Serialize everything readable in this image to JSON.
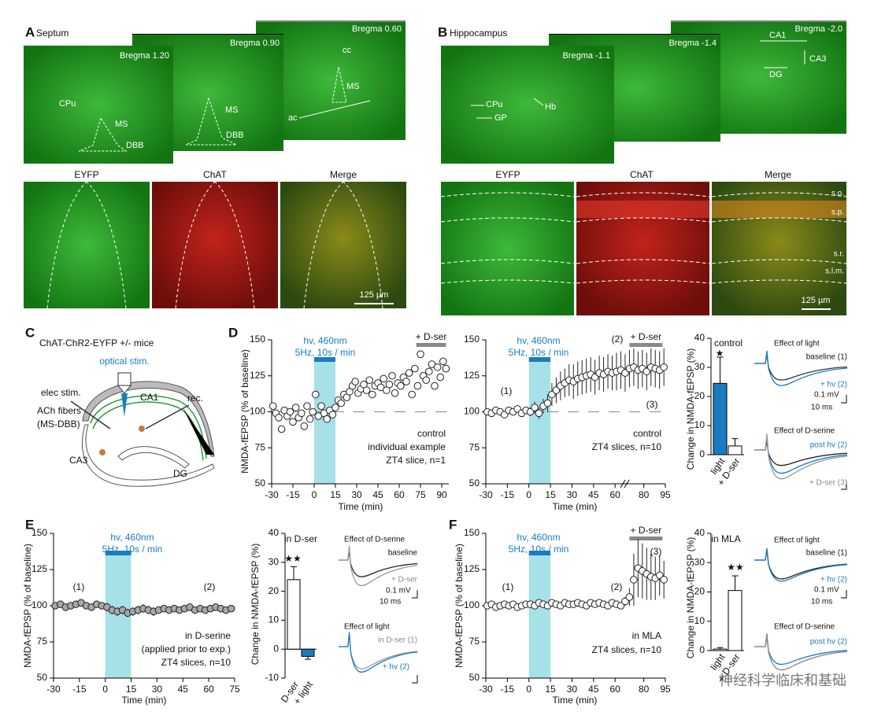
{
  "panel_a": {
    "letter": "A",
    "title": "Septum",
    "sections": [
      "Bregma 1.20",
      "Bregma 0.90",
      "Bregma 0.60"
    ],
    "region_labels": [
      "CPu",
      "MS",
      "DBB",
      "MS",
      "DBB",
      "cc",
      "MS",
      "ac"
    ],
    "channels": [
      "EYFP",
      "ChAT",
      "Merge"
    ],
    "scale_bar": "125 µm"
  },
  "panel_b": {
    "letter": "B",
    "title": "Hippocampus",
    "sections": [
      "Bregma -1.1",
      "Bregma -1.4",
      "Bregma -2.0"
    ],
    "region_labels": [
      "CPu",
      "GP",
      "Hb",
      "CA1",
      "CA3",
      "DG"
    ],
    "channels": [
      "EYFP",
      "ChAT",
      "Merge"
    ],
    "layers": [
      "s.o.",
      "s.p.",
      "s.r.",
      "s.l.m."
    ],
    "scale_bar": "125 µm"
  },
  "panel_c": {
    "letter": "C",
    "title": "ChAT-ChR2-EYFP +/-  mice",
    "labels": [
      "optical stim.",
      "CA1",
      "elec stim.",
      "rec.",
      "ACh fibers",
      "(MS-DBB)",
      "CA3",
      "DG"
    ]
  },
  "panel_d": {
    "letter": "D",
    "y_axis_label": "NMDA-fEPSP (% of baseline)",
    "x_axis_label": "Time (min)",
    "stim_label": [
      "hv, 460nm",
      "5Hz, 10s / min"
    ],
    "charts": [
      {
        "type": "scatter",
        "x": [
          -29,
          -27,
          -25,
          -23,
          -21,
          -19,
          -17,
          -15,
          -13,
          -11,
          -9,
          -7,
          -5,
          -3,
          -1,
          1,
          3,
          5,
          7,
          9,
          11,
          13,
          15,
          17,
          19,
          21,
          23,
          25,
          27,
          29,
          31,
          33,
          35,
          37,
          39,
          41,
          43,
          45,
          47,
          49,
          51,
          53,
          55,
          57,
          59,
          61,
          63,
          65,
          67,
          69,
          71,
          73,
          75,
          77,
          79,
          81,
          83,
          85,
          87,
          89,
          91,
          93
        ],
        "values": [
          104,
          99,
          96,
          88,
          101,
          97,
          100,
          93,
          103,
          96,
          99,
          90,
          104,
          95,
          100,
          112,
          97,
          104,
          99,
          95,
          101,
          98,
          103,
          108,
          106,
          112,
          110,
          114,
          118,
          121,
          113,
          116,
          119,
          115,
          122,
          112,
          118,
          120,
          117,
          123,
          115,
          119,
          125,
          113,
          120,
          118,
          124,
          121,
          127,
          112,
          130,
          118,
          140,
          125,
          122,
          128,
          133,
          118,
          131,
          124,
          135,
          130
        ],
        "xlim": [
          -30,
          95
        ],
        "xticks": [
          -30,
          -15,
          0,
          15,
          30,
          45,
          60,
          75,
          90
        ],
        "ylim": [
          50,
          150
        ],
        "yticks": [
          50,
          75,
          100,
          125,
          150
        ],
        "stim_period": [
          0,
          15
        ],
        "stim_color": "#1a7cc0",
        "shade_color": "#a6e1e8",
        "dser_label": "+ D-ser",
        "dser_period": [
          72,
          93
        ],
        "reference_line": 100,
        "marker_fill": "#ffffff",
        "annotations": [
          "control",
          "individual example",
          "ZT4 slice, n=1"
        ]
      },
      {
        "type": "scatter",
        "x": [
          -29,
          -26,
          -23,
          -20,
          -17,
          -14,
          -11,
          -8,
          -5,
          -2,
          1,
          4,
          7,
          10,
          13,
          16,
          19,
          22,
          25,
          28,
          31,
          34,
          37,
          40,
          43,
          46,
          49,
          52,
          55,
          58,
          61,
          64,
          67,
          70,
          73,
          76,
          79,
          82,
          85,
          88,
          91,
          94
        ],
        "values": [
          100,
          99,
          101,
          100,
          98,
          101,
          100,
          102,
          99,
          101,
          100,
          103,
          99,
          104,
          106,
          112,
          115,
          118,
          120,
          122,
          121,
          123,
          124,
          125,
          126,
          124,
          127,
          126,
          128,
          127,
          128,
          129,
          127,
          130,
          131,
          129,
          130,
          128,
          131,
          130,
          129,
          131
        ],
        "errors": [
          2,
          2,
          2,
          2,
          2,
          2,
          2,
          2,
          2,
          2,
          3,
          4,
          4,
          5,
          6,
          8,
          9,
          10,
          10,
          11,
          12,
          12,
          12,
          12,
          12,
          12,
          12,
          12,
          12,
          12,
          13,
          13,
          13,
          13,
          13,
          13,
          13,
          13,
          13,
          13,
          13,
          13
        ],
        "xlim": [
          -30,
          95
        ],
        "xticks": [
          -30,
          -15,
          0,
          15,
          30,
          45,
          60,
          80,
          95
        ],
        "ylim": [
          50,
          150
        ],
        "yticks": [
          50,
          75,
          100,
          125,
          150
        ],
        "stim_period": [
          0,
          15
        ],
        "stim_color": "#1a7cc0",
        "shade_color": "#a6e1e8",
        "dser_label": "+ D-ser",
        "dser_period": [
          70,
          93
        ],
        "reference_line": 100,
        "marker_fill": "#ffffff",
        "annotations": [
          "(1)",
          "(2)",
          "(3)",
          "control",
          "ZT4 slices, n=10"
        ]
      }
    ],
    "bar_chart": {
      "type": "bar",
      "categories": [
        "light",
        "+ D-ser"
      ],
      "values": [
        24.5,
        3
      ],
      "errors": [
        9,
        2.5
      ],
      "colors": [
        "#1a7cc0",
        "#ffffff"
      ],
      "ylim": [
        0,
        40
      ],
      "yticks": [
        0,
        10,
        20,
        30,
        40
      ],
      "y_axis_label": "Change in NMDA-fEPSP (%)",
      "label": "control",
      "significance": "★"
    },
    "traces": [
      "Effect of light",
      "baseline (1)",
      "+ hv (2)",
      "0.1 mV",
      "10 ms",
      "Effect of D-serine",
      "post hv (2)",
      "+ D-ser (3)"
    ]
  },
  "panel_e": {
    "letter": "E",
    "y_axis_label": "NMDA-fEPSP (% of baseline)",
    "x_axis_label": "Time (min)",
    "stim_label": [
      "hv, 460nm",
      "5Hz, 10s / min"
    ],
    "chart": {
      "type": "scatter",
      "x": [
        -29,
        -26,
        -23,
        -20,
        -17,
        -14,
        -11,
        -8,
        -5,
        -2,
        1,
        4,
        7,
        10,
        13,
        16,
        19,
        22,
        25,
        28,
        31,
        34,
        37,
        40,
        43,
        46,
        49,
        52,
        55,
        58,
        61,
        64,
        67,
        70,
        73
      ],
      "values": [
        100,
        101,
        99,
        100,
        101,
        102,
        100,
        99,
        101,
        100,
        99,
        97,
        96,
        97,
        95,
        96,
        97,
        98,
        97,
        96,
        97,
        98,
        97,
        98,
        97,
        98,
        99,
        97,
        98,
        97,
        98,
        99,
        98,
        97,
        98
      ],
      "errors": [
        2,
        2,
        2,
        2,
        2,
        2,
        2,
        2,
        2,
        2,
        3,
        3,
        3,
        3,
        3,
        3,
        3,
        3,
        3,
        3,
        2,
        2,
        2,
        2,
        2,
        2,
        2,
        2,
        2,
        2,
        2,
        2,
        2,
        2,
        2
      ],
      "xlim": [
        -30,
        75
      ],
      "xticks": [
        -30,
        -15,
        0,
        15,
        30,
        45,
        60,
        75
      ],
      "ylim": [
        50,
        150
      ],
      "yticks": [
        50,
        75,
        100,
        125,
        150
      ],
      "stim_period": [
        0,
        15
      ],
      "stim_color": "#1a7cc0",
      "shade_color": "#a6e1e8",
      "marker_fill": "#a8a8a8",
      "annotations": [
        "(1)",
        "(2)",
        "in D-serine",
        "(applied prior to exp.)",
        "ZT4 slices, n=10"
      ]
    },
    "bar_chart": {
      "type": "bar",
      "categories": [
        "D-ser",
        "+ light"
      ],
      "values": [
        24,
        -2.5
      ],
      "errors": [
        4.5,
        1
      ],
      "colors": [
        "#ffffff",
        "#1a7cc0"
      ],
      "ylim": [
        -10,
        40
      ],
      "yticks": [
        -10,
        0,
        10,
        20,
        30,
        40
      ],
      "y_axis_label": "Change in NMDA-fEPSP (%)",
      "label": "in D-ser",
      "significance": "★★"
    },
    "traces": [
      "Effect of D-serine",
      "baseline",
      "+ D-ser",
      "0.1 mV",
      "10 ms",
      "Effect of light",
      "in D-ser (1)",
      "+ hv (2)"
    ]
  },
  "panel_f": {
    "letter": "F",
    "y_axis_label": "NMDA-fEPSP (% of baseline)",
    "x_axis_label": "Time (min)",
    "stim_label": [
      "hv, 460nm",
      "5Hz, 10s / min"
    ],
    "chart": {
      "type": "scatter",
      "x": [
        -29,
        -26,
        -23,
        -20,
        -17,
        -14,
        -11,
        -8,
        -5,
        -2,
        1,
        4,
        7,
        10,
        13,
        16,
        19,
        22,
        25,
        28,
        31,
        34,
        37,
        40,
        43,
        46,
        49,
        52,
        55,
        58,
        61,
        64,
        67,
        70,
        73,
        76,
        79,
        82,
        85,
        88,
        91,
        94
      ],
      "values": [
        100,
        101,
        99,
        100,
        101,
        100,
        101,
        99,
        100,
        101,
        101,
        100,
        102,
        101,
        100,
        102,
        101,
        100,
        102,
        101,
        101,
        102,
        101,
        100,
        102,
        101,
        102,
        101,
        100,
        102,
        101,
        100,
        103,
        106,
        118,
        126,
        124,
        122,
        120,
        119,
        121,
        118
      ],
      "errors": [
        2,
        2,
        2,
        2,
        2,
        2,
        2,
        2,
        2,
        2,
        2,
        2,
        2,
        2,
        2,
        2,
        2,
        2,
        2,
        2,
        2,
        2,
        2,
        2,
        2,
        2,
        2,
        2,
        2,
        2,
        2,
        2,
        3,
        6,
        18,
        20,
        19,
        18,
        16,
        15,
        14,
        13
      ],
      "xlim": [
        -30,
        95
      ],
      "xticks": [
        -30,
        -15,
        0,
        15,
        30,
        45,
        60,
        80,
        95
      ],
      "ylim": [
        50,
        150
      ],
      "yticks": [
        50,
        75,
        100,
        125,
        150
      ],
      "stim_period": [
        0,
        15
      ],
      "stim_color": "#1a7cc0",
      "shade_color": "#a6e1e8",
      "dser_label": "+ D-ser",
      "dser_period": [
        70,
        93
      ],
      "marker_fill": "#ffffff",
      "annotations": [
        "(1)",
        "(2)",
        "(3)",
        "in MLA",
        "ZT4 slices, n=10"
      ]
    },
    "bar_chart": {
      "type": "bar",
      "categories": [
        "light",
        "+ D-ser"
      ],
      "values": [
        0.5,
        20.5
      ],
      "errors": [
        0.5,
        5
      ],
      "colors": [
        "#ffffff",
        "#ffffff"
      ],
      "ylim": [
        0,
        40
      ],
      "yticks": [
        0,
        10,
        20,
        30,
        40
      ],
      "y_axis_label": "Change in NMDA-fEPSP (%)",
      "label": "in MLA",
      "significance": "★★"
    },
    "traces": [
      "Effect of light",
      "baseline (1)",
      "+ hv (2)",
      "0.1 mV",
      "10 ms",
      "Effect of D-serine",
      "post hv (2)"
    ]
  },
  "watermark": "神经科学临床和基础"
}
